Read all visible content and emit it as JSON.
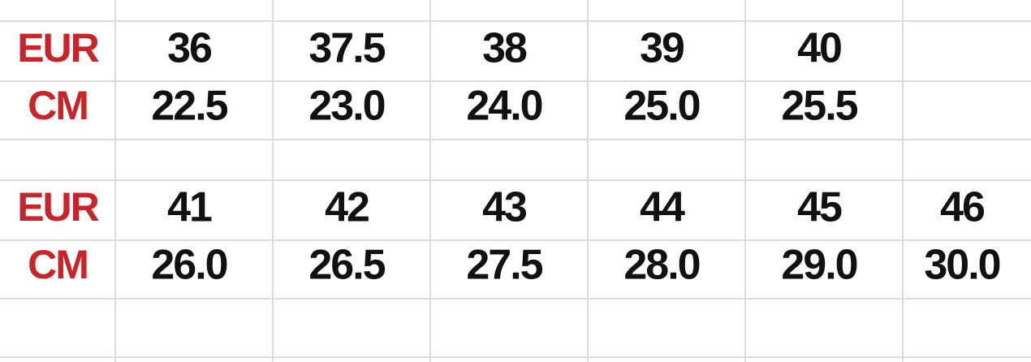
{
  "size_table": {
    "blocks": [
      {
        "row_labels": [
          "EUR",
          "CM"
        ],
        "eur": [
          "36",
          "37.5",
          "38",
          "39",
          "40"
        ],
        "cm": [
          "22.5",
          "23.0",
          "24.0",
          "25.0",
          "25.5"
        ]
      },
      {
        "row_labels": [
          "EUR",
          "CM"
        ],
        "eur": [
          "41",
          "42",
          "43",
          "44",
          "45",
          "46"
        ],
        "cm": [
          "26.0",
          "26.5",
          "27.5",
          "28.0",
          "29.0",
          "30.0"
        ]
      }
    ]
  }
}
